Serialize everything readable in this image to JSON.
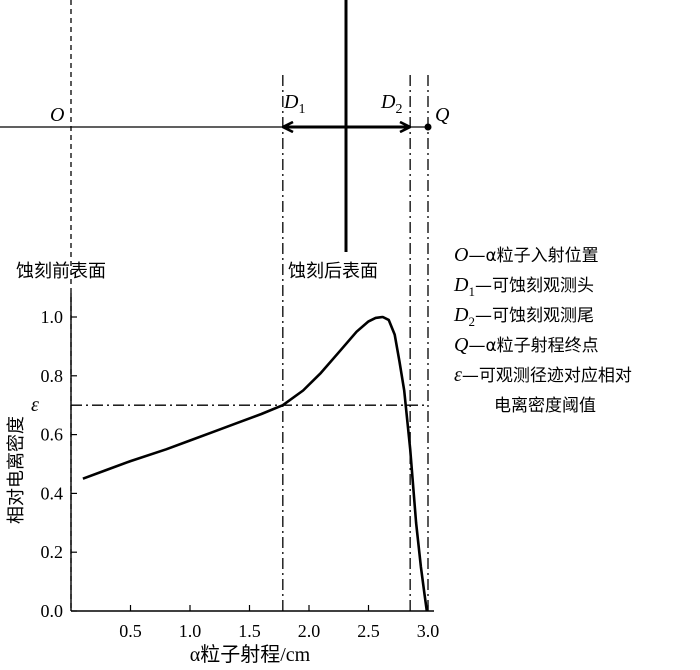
{
  "chart_data": {
    "type": "line",
    "title": "",
    "xlabel": "α粒子射程/cm",
    "ylabel": "相对电离密度",
    "xlim": [
      0,
      3.0
    ],
    "ylim": [
      0,
      1.0
    ],
    "xticks": [
      0.5,
      1.0,
      1.5,
      2.0,
      2.5,
      3.0
    ],
    "xtick_labels": [
      "0.5",
      "1.0",
      "1.5",
      "2.0",
      "2.5",
      "3.0"
    ],
    "yticks": [
      0,
      0.2,
      0.4,
      0.6,
      0.8,
      1.0
    ],
    "ytick_labels": [
      "0.0",
      "0.2",
      "0.4",
      "0.6",
      "0.8",
      "1.0"
    ],
    "epsilon": {
      "label": "ε",
      "value": 0.7
    },
    "series": [
      {
        "x": [
          0.1,
          0.3,
          0.5,
          0.8,
          1.0,
          1.2,
          1.4,
          1.6,
          1.78,
          1.95,
          2.1,
          2.25,
          2.4,
          2.5,
          2.56,
          2.62,
          2.67,
          2.72,
          2.76,
          2.8,
          2.85,
          2.9,
          2.94,
          2.97,
          2.99
        ],
        "y": [
          0.45,
          0.48,
          0.51,
          0.55,
          0.58,
          0.61,
          0.64,
          0.67,
          0.7,
          0.75,
          0.81,
          0.88,
          0.95,
          0.985,
          0.997,
          1.0,
          0.99,
          0.94,
          0.85,
          0.75,
          0.55,
          0.3,
          0.15,
          0.06,
          0.0
        ]
      }
    ],
    "markers": [
      {
        "name": "O",
        "x": 0
      },
      {
        "name": "D1",
        "x": 1.78
      },
      {
        "name": "D2",
        "x": 2.85
      },
      {
        "name": "Q",
        "x": 3.0
      }
    ]
  },
  "labels": {
    "O": "O",
    "D": "D",
    "sub1": "1",
    "sub2": "2",
    "Q": "Q",
    "before_surface": "蚀刻前表面",
    "after_surface": "蚀刻后表面"
  },
  "legend": [
    {
      "sym": "O",
      "sub": "",
      "text": "—α粒子入射位置"
    },
    {
      "sym": "D",
      "sub": "1",
      "text": "—可蚀刻观测头"
    },
    {
      "sym": "D",
      "sub": "2",
      "text": "—可蚀刻观测尾"
    },
    {
      "sym": "Q",
      "sub": "",
      "text": "—α粒子射程终点"
    },
    {
      "sym": "ε",
      "sub": "",
      "text": "—可观测径迹对应相对"
    },
    {
      "sym": "",
      "sub": "",
      "text": "电离密度阈值"
    }
  ]
}
